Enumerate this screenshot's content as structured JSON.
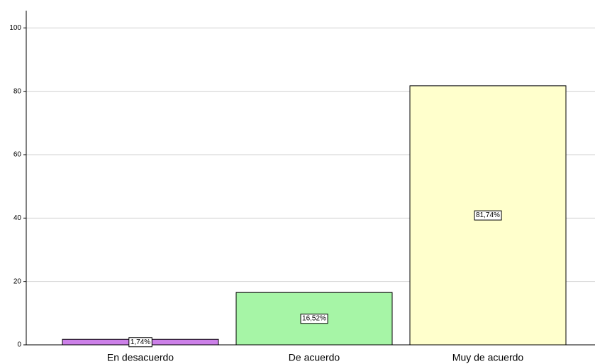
{
  "chart_data": {
    "type": "bar",
    "categories": [
      "En desacuerdo",
      "De acuerdo",
      "Muy de acuerdo"
    ],
    "values": [
      1.74,
      16.52,
      81.74
    ],
    "value_labels": [
      "1,74%",
      "16,52%",
      "81,74%"
    ],
    "colors": [
      "#cc80e8",
      "#a6f5a6",
      "#ffffcc"
    ],
    "ylim": [
      0,
      105
    ],
    "yticks": [
      0,
      20,
      40,
      60,
      80,
      100
    ],
    "grid": true
  }
}
